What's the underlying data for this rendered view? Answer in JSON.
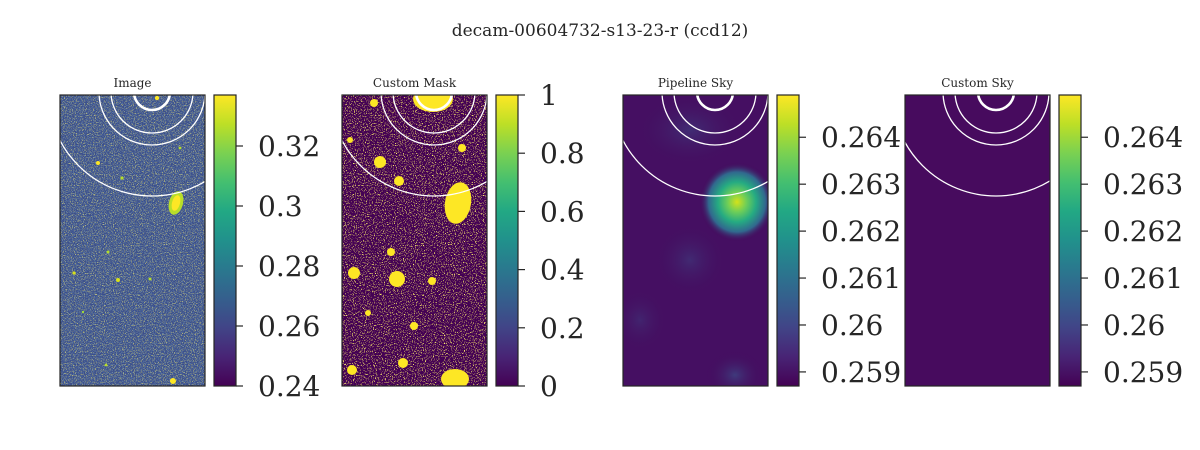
{
  "figure": {
    "title": "decam-00604732-s13-23-r (ccd12)"
  },
  "chart_data": [
    {
      "type": "heatmap",
      "title": "Image",
      "colormap": "viridis",
      "colorbar": {
        "vmin": 0.24,
        "vmax": 0.337,
        "ticks": [
          0.24,
          0.26,
          0.28,
          0.3,
          0.32
        ],
        "tick_labels": [
          "0.24",
          "0.26",
          "0.28",
          "0.3",
          "0.32"
        ]
      }
    },
    {
      "type": "heatmap",
      "title": "Custom Mask",
      "colormap": "viridis",
      "colorbar": {
        "vmin": 0,
        "vmax": 1,
        "ticks": [
          0,
          0.2,
          0.4,
          0.6,
          0.8,
          1
        ],
        "tick_labels": [
          "0",
          "0.2",
          "0.4",
          "0.6",
          "0.8",
          "1"
        ]
      }
    },
    {
      "type": "heatmap",
      "title": "Pipeline Sky",
      "colormap": "viridis",
      "colorbar": {
        "vmin": 0.2587,
        "vmax": 0.2649,
        "ticks": [
          0.259,
          0.26,
          0.261,
          0.262,
          0.263,
          0.264
        ],
        "tick_labels": [
          "0.259",
          "0.26",
          "0.261",
          "0.262",
          "0.263",
          "0.264"
        ]
      }
    },
    {
      "type": "heatmap",
      "title": "Custom Sky",
      "colormap": "viridis",
      "colorbar": {
        "vmin": 0.2587,
        "vmax": 0.2649,
        "ticks": [
          0.259,
          0.26,
          0.261,
          0.262,
          0.263,
          0.264
        ],
        "tick_labels": [
          "0.259",
          "0.26",
          "0.261",
          "0.262",
          "0.263",
          "0.264"
        ]
      }
    }
  ],
  "colors": {
    "viridis_low": "#440154",
    "viridis_high": "#fde725",
    "overlay": "#ffffff"
  }
}
